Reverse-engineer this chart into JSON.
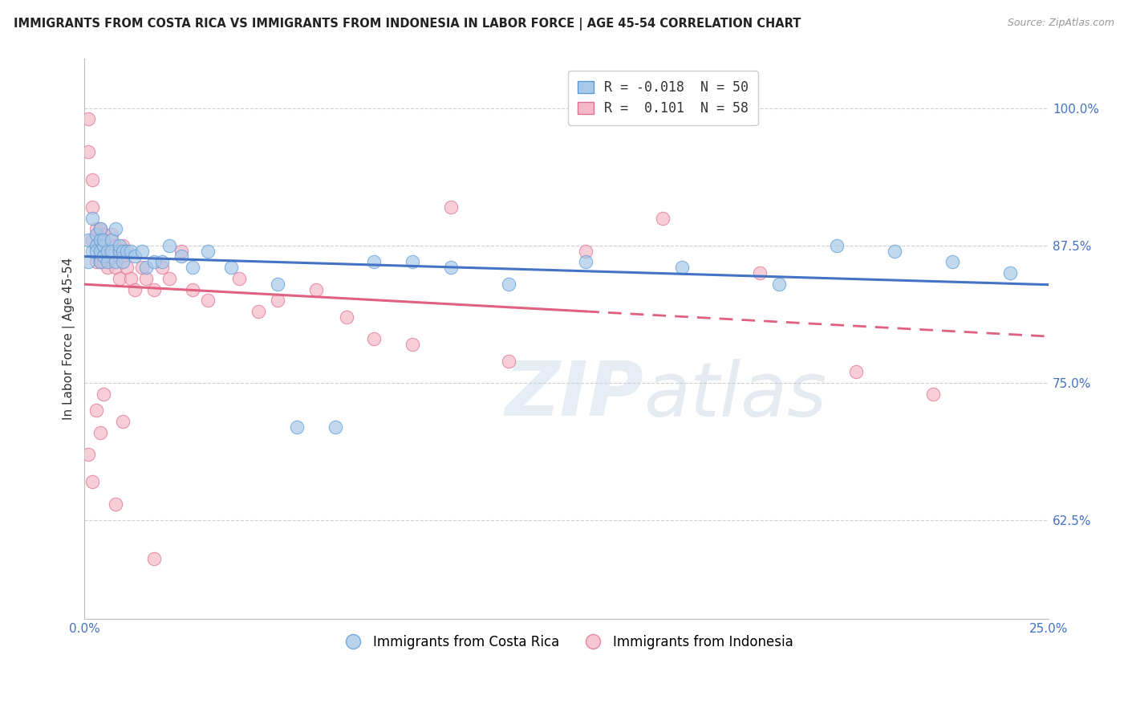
{
  "title": "IMMIGRANTS FROM COSTA RICA VS IMMIGRANTS FROM INDONESIA IN LABOR FORCE | AGE 45-54 CORRELATION CHART",
  "source": "Source: ZipAtlas.com",
  "ylabel": "In Labor Force | Age 45-54",
  "xlim": [
    0.0,
    0.25
  ],
  "ylim": [
    0.535,
    1.045
  ],
  "xticks": [
    0.0,
    0.05,
    0.1,
    0.15,
    0.2,
    0.25
  ],
  "xtick_labels": [
    "0.0%",
    "",
    "",
    "",
    "",
    "25.0%"
  ],
  "yticks": [
    0.625,
    0.75,
    0.875,
    1.0
  ],
  "ytick_labels": [
    "62.5%",
    "75.0%",
    "87.5%",
    "100.0%"
  ],
  "legend_labels_bottom": [
    "Immigrants from Costa Rica",
    "Immigrants from Indonesia"
  ],
  "blue_color": "#a8c8e8",
  "blue_edge_color": "#5b9bd5",
  "pink_color": "#f4b8c8",
  "pink_edge_color": "#e07090",
  "blue_line_color": "#4472c4",
  "pink_line_color": "#e06080",
  "background_color": "#ffffff",
  "watermark": "ZIPatlas",
  "blue_x": [
    0.001,
    0.001,
    0.002,
    0.002,
    0.003,
    0.003,
    0.003,
    0.004,
    0.004,
    0.004,
    0.004,
    0.005,
    0.005,
    0.005,
    0.006,
    0.006,
    0.007,
    0.007,
    0.008,
    0.008,
    0.009,
    0.009,
    0.01,
    0.01,
    0.011,
    0.012,
    0.013,
    0.015,
    0.016,
    0.018,
    0.02,
    0.022,
    0.025,
    0.028,
    0.032,
    0.038,
    0.05,
    0.055,
    0.065,
    0.075,
    0.085,
    0.095,
    0.11,
    0.13,
    0.155,
    0.18,
    0.195,
    0.21,
    0.225,
    0.24
  ],
  "blue_y": [
    0.88,
    0.86,
    0.9,
    0.87,
    0.885,
    0.875,
    0.87,
    0.89,
    0.88,
    0.87,
    0.86,
    0.875,
    0.865,
    0.88,
    0.87,
    0.86,
    0.88,
    0.87,
    0.89,
    0.86,
    0.87,
    0.875,
    0.87,
    0.86,
    0.87,
    0.87,
    0.865,
    0.87,
    0.855,
    0.86,
    0.86,
    0.875,
    0.865,
    0.855,
    0.87,
    0.855,
    0.84,
    0.71,
    0.71,
    0.86,
    0.86,
    0.855,
    0.84,
    0.86,
    0.855,
    0.84,
    0.875,
    0.87,
    0.86,
    0.85
  ],
  "pink_x": [
    0.001,
    0.001,
    0.002,
    0.002,
    0.002,
    0.003,
    0.003,
    0.003,
    0.004,
    0.004,
    0.004,
    0.005,
    0.005,
    0.005,
    0.006,
    0.006,
    0.006,
    0.007,
    0.007,
    0.008,
    0.008,
    0.009,
    0.009,
    0.01,
    0.01,
    0.011,
    0.012,
    0.013,
    0.015,
    0.016,
    0.018,
    0.02,
    0.022,
    0.025,
    0.028,
    0.032,
    0.04,
    0.045,
    0.05,
    0.06,
    0.068,
    0.075,
    0.085,
    0.095,
    0.11,
    0.13,
    0.15,
    0.175,
    0.2,
    0.22,
    0.001,
    0.002,
    0.003,
    0.004,
    0.005,
    0.008,
    0.01,
    0.018
  ],
  "pink_y": [
    0.99,
    0.96,
    0.935,
    0.91,
    0.88,
    0.89,
    0.875,
    0.86,
    0.89,
    0.875,
    0.86,
    0.885,
    0.875,
    0.86,
    0.855,
    0.875,
    0.865,
    0.885,
    0.865,
    0.875,
    0.855,
    0.87,
    0.845,
    0.865,
    0.875,
    0.855,
    0.845,
    0.835,
    0.855,
    0.845,
    0.835,
    0.855,
    0.845,
    0.87,
    0.835,
    0.825,
    0.845,
    0.815,
    0.825,
    0.835,
    0.81,
    0.79,
    0.785,
    0.91,
    0.77,
    0.87,
    0.9,
    0.85,
    0.76,
    0.74,
    0.685,
    0.66,
    0.725,
    0.705,
    0.74,
    0.64,
    0.715,
    0.59
  ],
  "pink_data_xlim": 0.13,
  "blue_R": -0.018,
  "blue_N": 50,
  "pink_R": 0.101,
  "pink_N": 58
}
